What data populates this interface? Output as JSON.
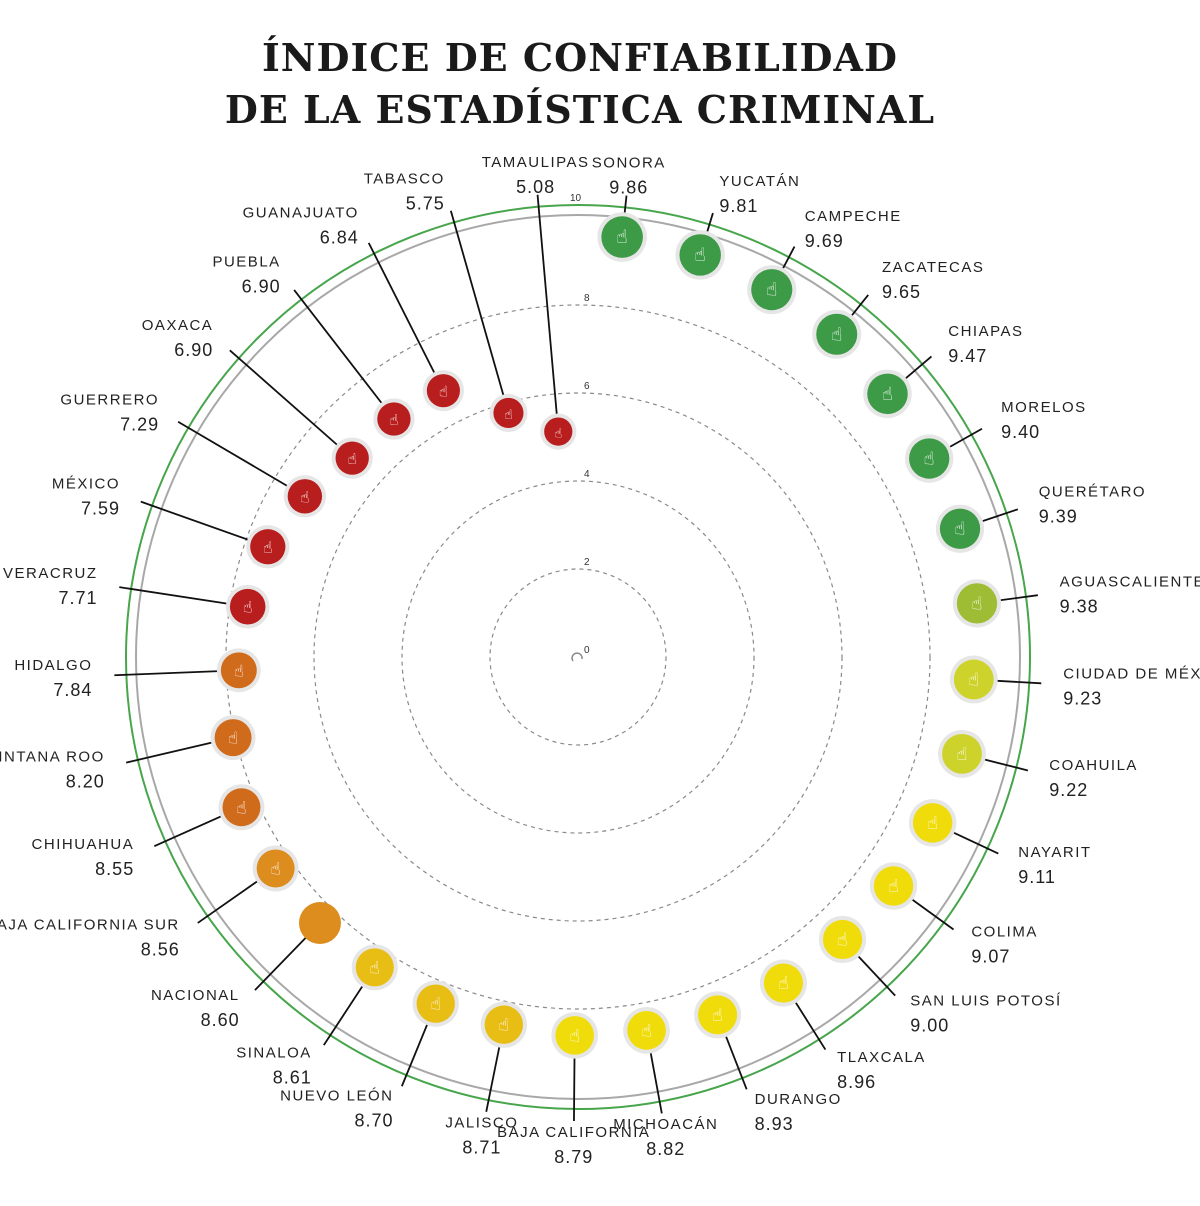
{
  "title": {
    "line1": "ÍNDICE DE CONFIABILIDAD",
    "line2": "DE LA ESTADÍSTICA CRIMINAL"
  },
  "chart_data": {
    "type": "radial-scatter",
    "rmax": 10,
    "ring_ticks": [
      "0",
      "2",
      "4",
      "6",
      "8",
      "10"
    ],
    "colors": {
      "red": "#b91e1e",
      "orange": "#d06b1c",
      "amber": "#dd8c1e",
      "gold": "#e8bd14",
      "yellow": "#f0dc0a",
      "lime": "#cdd32a",
      "olive": "#9ebd34",
      "green": "#3d9a46",
      "outer_ring": "#47a54b"
    },
    "states": [
      {
        "name": "SONORA",
        "value": 9.86,
        "color": "green"
      },
      {
        "name": "YUCATÁN",
        "value": 9.81,
        "color": "green"
      },
      {
        "name": "CAMPECHE",
        "value": 9.69,
        "color": "green"
      },
      {
        "name": "ZACATECAS",
        "value": 9.65,
        "color": "green"
      },
      {
        "name": "CHIAPAS",
        "value": 9.47,
        "color": "green"
      },
      {
        "name": "MORELOS",
        "value": 9.4,
        "color": "green"
      },
      {
        "name": "QUERÉTARO",
        "value": 9.39,
        "color": "green"
      },
      {
        "name": "AGUASCALIENTES",
        "value": 9.38,
        "color": "olive"
      },
      {
        "name": "CIUDAD DE MÉXICO",
        "value": 9.23,
        "color": "lime"
      },
      {
        "name": "COAHUILA",
        "value": 9.22,
        "color": "lime"
      },
      {
        "name": "NAYARIT",
        "value": 9.11,
        "color": "yellow"
      },
      {
        "name": "COLIMA",
        "value": 9.07,
        "color": "yellow"
      },
      {
        "name": "SAN LUIS POTOSÍ",
        "value": 9.0,
        "color": "yellow"
      },
      {
        "name": "TLAXCALA",
        "value": 8.96,
        "color": "yellow"
      },
      {
        "name": "DURANGO",
        "value": 8.93,
        "color": "yellow"
      },
      {
        "name": "MICHOACÁN",
        "value": 8.82,
        "color": "yellow"
      },
      {
        "name": "BAJA CALIFORNIA",
        "value": 8.79,
        "color": "yellow"
      },
      {
        "name": "JALISCO",
        "value": 8.71,
        "color": "gold"
      },
      {
        "name": "NUEVO LEÓN",
        "value": 8.7,
        "color": "gold"
      },
      {
        "name": "SINALOA",
        "value": 8.61,
        "color": "gold"
      },
      {
        "name": "NACIONAL",
        "value": 8.6,
        "color": "amber",
        "national": true
      },
      {
        "name": "BAJA CALIFORNIA SUR",
        "value": 8.56,
        "color": "amber"
      },
      {
        "name": "CHIHUAHUA",
        "value": 8.55,
        "color": "orange"
      },
      {
        "name": "QUINTANA ROO",
        "value": 8.2,
        "color": "orange"
      },
      {
        "name": "HIDALGO",
        "value": 7.84,
        "color": "orange"
      },
      {
        "name": "VERACRUZ",
        "value": 7.71,
        "color": "red"
      },
      {
        "name": "MÉXICO",
        "value": 7.59,
        "color": "red"
      },
      {
        "name": "GUERRERO",
        "value": 7.29,
        "color": "red"
      },
      {
        "name": "OAXACA",
        "value": 6.9,
        "color": "red"
      },
      {
        "name": "PUEBLA",
        "value": 6.9,
        "color": "red"
      },
      {
        "name": "GUANAJUATO",
        "value": 6.84,
        "color": "red"
      },
      {
        "name": "TABASCO",
        "value": 5.75,
        "color": "red"
      },
      {
        "name": "TAMAULIPAS",
        "value": 5.08,
        "color": "red"
      }
    ]
  }
}
